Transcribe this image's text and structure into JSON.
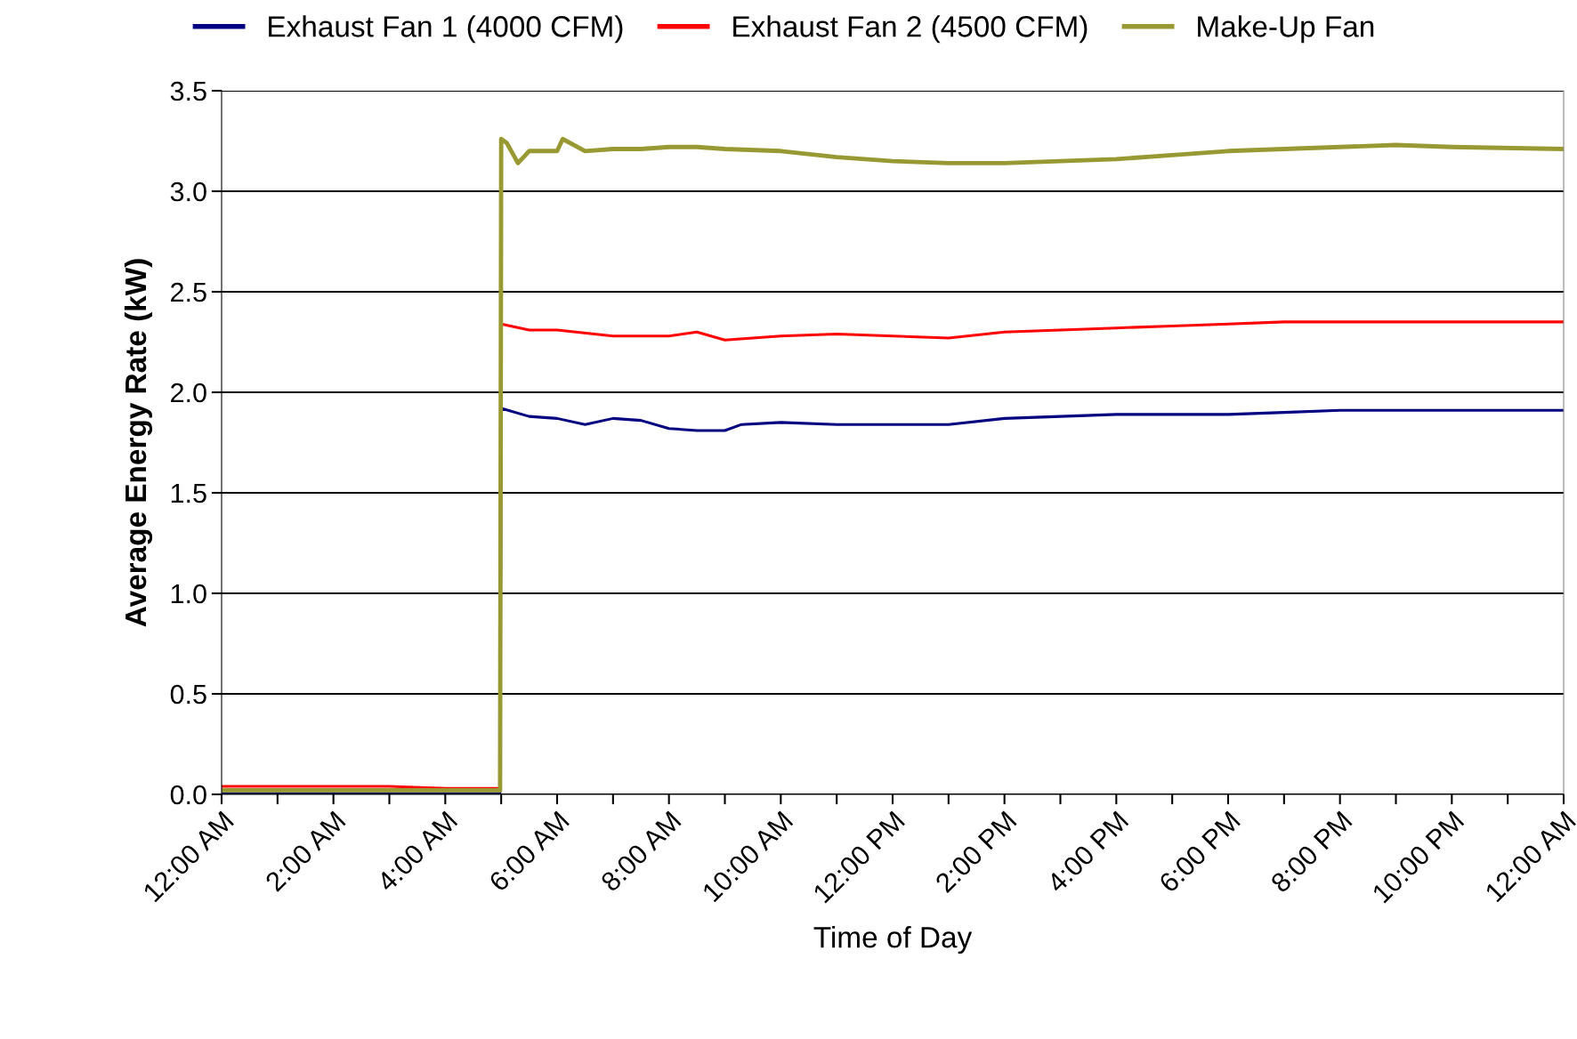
{
  "chart_data": {
    "type": "line",
    "xlabel": "Time of Day",
    "ylabel": "Average Energy Rate (kW)",
    "xlim": [
      0,
      24
    ],
    "ylim": [
      0,
      3.5
    ],
    "xticks": [
      {
        "value": 0,
        "label": "12:00 AM"
      },
      {
        "value": 1,
        "label": null
      },
      {
        "value": 2,
        "label": "2:00 AM"
      },
      {
        "value": 3,
        "label": null
      },
      {
        "value": 4,
        "label": "4:00 AM"
      },
      {
        "value": 5,
        "label": null
      },
      {
        "value": 6,
        "label": "6:00 AM"
      },
      {
        "value": 7,
        "label": null
      },
      {
        "value": 8,
        "label": "8:00 AM"
      },
      {
        "value": 9,
        "label": null
      },
      {
        "value": 10,
        "label": "10:00 AM"
      },
      {
        "value": 11,
        "label": null
      },
      {
        "value": 12,
        "label": "12:00 PM"
      },
      {
        "value": 13,
        "label": null
      },
      {
        "value": 14,
        "label": "2:00 PM"
      },
      {
        "value": 15,
        "label": null
      },
      {
        "value": 16,
        "label": "4:00 PM"
      },
      {
        "value": 17,
        "label": null
      },
      {
        "value": 18,
        "label": "6:00 PM"
      },
      {
        "value": 19,
        "label": null
      },
      {
        "value": 20,
        "label": "8:00 PM"
      },
      {
        "value": 21,
        "label": null
      },
      {
        "value": 22,
        "label": "10:00 PM"
      },
      {
        "value": 23,
        "label": null
      },
      {
        "value": 24,
        "label": "12:00 AM"
      }
    ],
    "yticks": [
      {
        "value": 0,
        "label": "0.0"
      },
      {
        "value": 0.5,
        "label": "0.5"
      },
      {
        "value": 1,
        "label": "1.0"
      },
      {
        "value": 1.5,
        "label": "1.5"
      },
      {
        "value": 2,
        "label": "2.0"
      },
      {
        "value": 2.5,
        "label": "2.5"
      },
      {
        "value": 3,
        "label": "3.0"
      },
      {
        "value": 3.5,
        "label": "3.5"
      }
    ],
    "grid": "y",
    "legend": "top",
    "marker": "none",
    "line_style": "solid",
    "series": [
      {
        "name": "Exhaust Fan 1 (4000 CFM)",
        "color": "#000080",
        "x": [
          0,
          2,
          4,
          4.98,
          5.0,
          5.5,
          6,
          6.5,
          7,
          7.5,
          8,
          8.5,
          9,
          9.3,
          10,
          11,
          12,
          13,
          14,
          15,
          16,
          17,
          18,
          19,
          20,
          21,
          22,
          24
        ],
        "values": [
          0.01,
          0.01,
          0.01,
          0.01,
          1.92,
          1.88,
          1.87,
          1.84,
          1.87,
          1.86,
          1.82,
          1.81,
          1.81,
          1.84,
          1.85,
          1.84,
          1.84,
          1.84,
          1.87,
          1.88,
          1.89,
          1.89,
          1.89,
          1.9,
          1.91,
          1.91,
          1.91,
          1.91
        ]
      },
      {
        "name": "Exhaust Fan 2 (4500 CFM)",
        "color": "#ff0000",
        "x": [
          0,
          2,
          3,
          4,
          4.98,
          5.0,
          5.5,
          6,
          7,
          8,
          8.5,
          9,
          10,
          11,
          12,
          13,
          14,
          15,
          16,
          17,
          18,
          19,
          21,
          24
        ],
        "values": [
          0.04,
          0.04,
          0.04,
          0.03,
          0.03,
          2.34,
          2.31,
          2.31,
          2.28,
          2.28,
          2.3,
          2.26,
          2.28,
          2.29,
          2.28,
          2.27,
          2.3,
          2.31,
          2.32,
          2.33,
          2.34,
          2.35,
          2.35,
          2.35
        ]
      },
      {
        "name": "Make-Up Fan",
        "color": "#999933",
        "x": [
          0,
          2,
          4,
          4.98,
          5.0,
          5.1,
          5.3,
          5.5,
          6,
          6.1,
          6.5,
          7,
          7.5,
          8,
          8.5,
          9,
          10,
          11,
          12,
          13,
          14,
          15,
          16,
          17,
          18,
          19,
          20,
          21,
          22,
          24
        ],
        "values": [
          0.02,
          0.02,
          0.02,
          0.02,
          3.26,
          3.24,
          3.14,
          3.2,
          3.2,
          3.26,
          3.2,
          3.21,
          3.21,
          3.22,
          3.22,
          3.21,
          3.2,
          3.17,
          3.15,
          3.14,
          3.14,
          3.15,
          3.16,
          3.18,
          3.2,
          3.21,
          3.22,
          3.23,
          3.22,
          3.21
        ]
      }
    ]
  }
}
